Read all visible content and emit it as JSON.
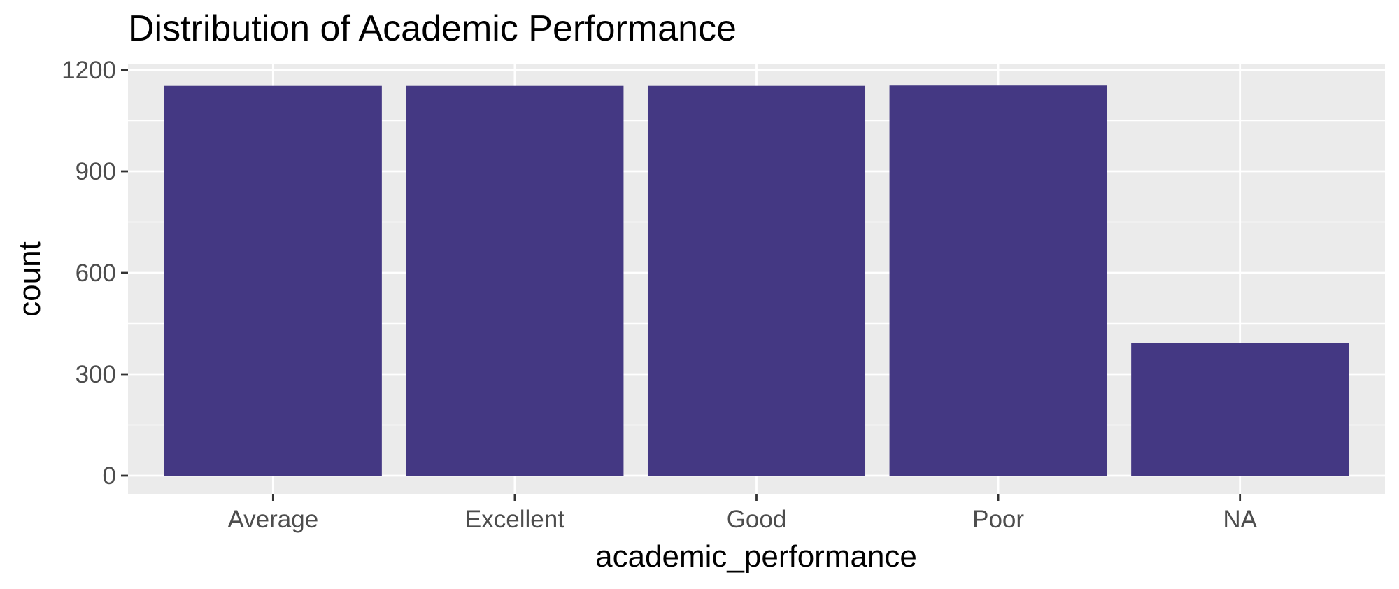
{
  "chart_data": {
    "type": "bar",
    "title": "Distribution of Academic Performance",
    "xlabel": "academic_performance",
    "ylabel": "count",
    "categories": [
      "Average",
      "Excellent",
      "Good",
      "Poor",
      "NA"
    ],
    "values": [
      1153,
      1153,
      1153,
      1154,
      392
    ],
    "ylim": [
      0,
      1200
    ],
    "yticks": [
      0,
      300,
      600,
      900,
      1200
    ],
    "ytick_labels": [
      "0",
      "300",
      "600",
      "900",
      "1200"
    ],
    "grid": true,
    "legend": "none",
    "colors": {
      "bar": "#443883",
      "panel": "#ebebeb",
      "grid": "#ffffff",
      "tick": "#333333",
      "tick_label": "#4d4d4d",
      "text": "#000000"
    }
  }
}
